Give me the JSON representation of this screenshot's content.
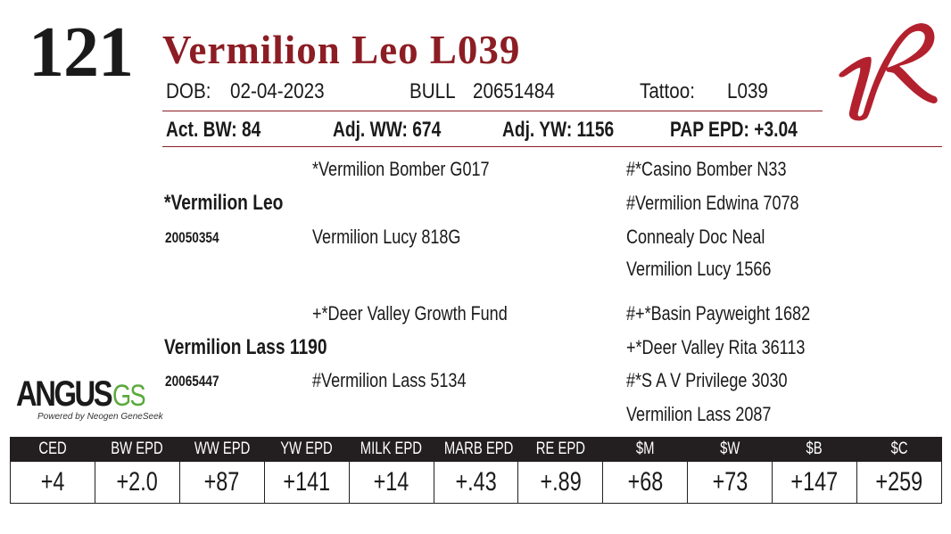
{
  "lot_number": "121",
  "animal_name": "Vermilion Leo L039",
  "info": {
    "dob_label": "DOB:",
    "dob_value": "02-04-2023",
    "sex_label": "BULL",
    "reg_number": "20651484",
    "tattoo_label": "Tattoo:",
    "tattoo_value": "L039"
  },
  "performance": {
    "act_bw": "Act. BW: 84",
    "adj_ww": "Adj. WW: 674",
    "adj_yw": "Adj. YW: 1156",
    "pap_epd": "PAP EPD: +3.04"
  },
  "pedigree": {
    "sire": {
      "name": "*Vermilion Leo",
      "reg": "20050354"
    },
    "sire_sire": "*Vermilion Bomber G017",
    "sire_dam": "Vermilion Lucy 818G",
    "sire_sire_sire": "#*Casino Bomber N33",
    "sire_sire_dam": "#Vermilion Edwina 7078",
    "sire_dam_sire": "Connealy Doc Neal",
    "sire_dam_dam": "Vermilion Lucy 1566",
    "dam": {
      "name": "Vermilion Lass 1190",
      "reg": "20065447"
    },
    "dam_sire": "+*Deer Valley Growth Fund",
    "dam_dam": "#Vermilion Lass 5134",
    "dam_sire_sire": "#+*Basin Payweight 1682",
    "dam_sire_dam": "+*Deer Valley Rita 36113",
    "dam_dam_sire": "#*S A V Privilege 3030",
    "dam_dam_dam": "Vermilion Lass 2087"
  },
  "logos": {
    "angus_word": "ANGUS",
    "gs_word": "GS",
    "powered_by": "Powered by Neogen GeneSeek",
    "brand_icon": "vr-brand-logo"
  },
  "epd_table": {
    "headers": [
      "CED",
      "BW EPD",
      "WW EPD",
      "YW EPD",
      "MILK EPD",
      "MARB EPD",
      "RE EPD",
      "$M",
      "$W",
      "$B",
      "$C"
    ],
    "values": [
      "+4",
      "+2.0",
      "+87",
      "+141",
      "+14",
      "+.43",
      "+.89",
      "+68",
      "+73",
      "+147",
      "+259"
    ]
  },
  "colors": {
    "accent": "#8c1d24",
    "header_bg": "#231f20",
    "gs_green": "#5aaa3c"
  }
}
